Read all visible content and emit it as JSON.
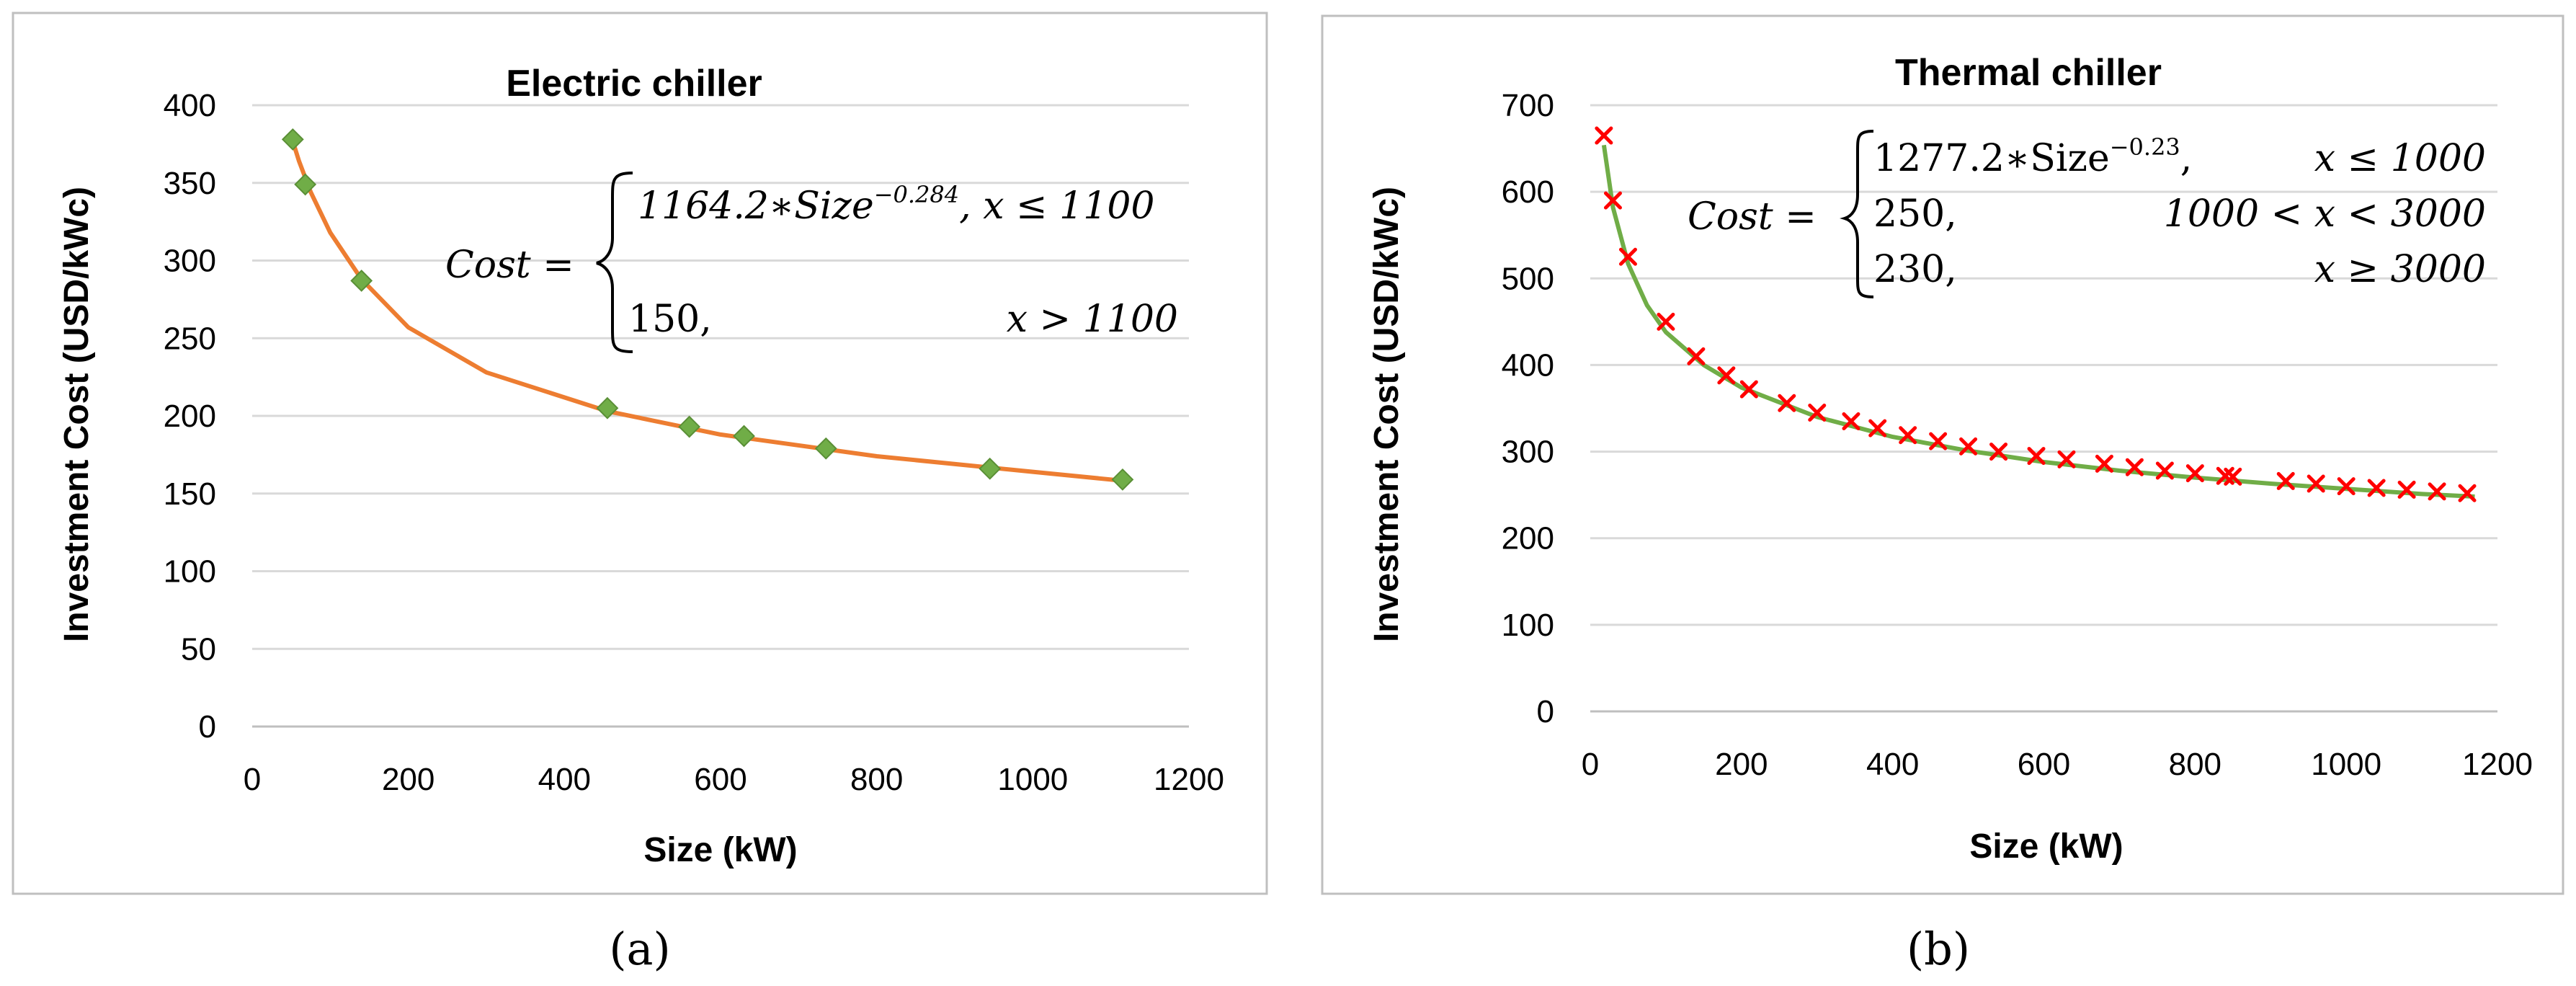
{
  "charts": [
    {
      "panel_label": "(a)",
      "chart_data": {
        "type": "scatter",
        "title": "Electric chiller",
        "xlabel": "Size (kW)",
        "ylabel": "Investment Cost (USD/kWc)",
        "xlim": [
          0,
          1200
        ],
        "ylim": [
          0,
          400
        ],
        "xticks": [
          "0",
          "200",
          "400",
          "600",
          "800",
          "1000",
          "1200"
        ],
        "yticks": [
          "0",
          "50",
          "100",
          "150",
          "200",
          "250",
          "300",
          "350",
          "400"
        ],
        "grid": true,
        "series": [
          {
            "name": "data",
            "marker": "diamond",
            "color": "#70ad47",
            "x": [
              52,
              68,
              140,
              455,
              560,
              630,
              735,
              945,
              1115
            ],
            "y": [
              378,
              349,
              287,
              205,
              193,
              187,
              179,
              166,
              159
            ]
          },
          {
            "name": "fit",
            "kind": "curve",
            "color": "#ed7d31",
            "x": [
              50,
              60,
              75,
              100,
              140,
              200,
              300,
              455,
              600,
              800,
              1000,
              1120
            ],
            "y": [
              380,
              364,
              344,
              318,
              288,
              257,
              228,
              203,
              188,
              174,
              164,
              158
            ]
          }
        ],
        "equation": {
          "lhs": "Cost =",
          "row1_coef": "1164.2∗Size",
          "row1_exp": "−0.284",
          "row1_cond": ", x ≤ 1100",
          "row2_val": "150,",
          "row2_cond": "x > 1100"
        }
      }
    },
    {
      "panel_label": "(b)",
      "chart_data": {
        "type": "scatter",
        "title": "Thermal chiller",
        "xlabel": "Size (kW)",
        "ylabel": "Investment Cost (USD/kWc)",
        "xlim": [
          0,
          1200
        ],
        "ylim": [
          0,
          700
        ],
        "xticks": [
          "0",
          "200",
          "400",
          "600",
          "800",
          "1000",
          "1200"
        ],
        "yticks": [
          "0",
          "100",
          "200",
          "300",
          "400",
          "500",
          "600",
          "700"
        ],
        "grid": true,
        "series": [
          {
            "name": "data",
            "marker": "x",
            "color": "#ff0000",
            "x": [
              18,
              30,
              50,
              100,
              140,
              180,
              210,
              260,
              300,
              345,
              380,
              420,
              460,
              500,
              540,
              590,
              630,
              680,
              720,
              760,
              800,
              840,
              850,
              920,
              960,
              1000,
              1040,
              1080,
              1120,
              1160
            ],
            "y": [
              665,
              590,
              525,
              450,
              410,
              388,
              372,
              356,
              345,
              335,
              327,
              319,
              312,
              306,
              300,
              295,
              291,
              286,
              282,
              278,
              275,
              272,
              271,
              266,
              263,
              260,
              258,
              256,
              254,
              252
            ]
          },
          {
            "name": "fit",
            "kind": "curve",
            "color": "#70ad47",
            "x": [
              18,
              30,
              50,
              75,
              100,
              150,
              200,
              300,
              400,
              500,
              600,
              700,
              800,
              900,
              1000,
              1100,
              1170
            ],
            "y": [
              654,
              582,
              517,
              469,
              438,
              400,
              374,
              340,
              317,
              301,
              288,
              278,
              270,
              263,
              257,
              251,
              248
            ]
          }
        ],
        "equation": {
          "lhs": "Cost =",
          "row1_coef": "1277.2∗Size",
          "row1_exp": "−0.23",
          "row1_comma": ",",
          "row1_cond": "x ≤ 1000",
          "row2_val": "250,",
          "row2_cond": "1000 <  x < 3000",
          "row3_val": "230,",
          "row3_cond": "x ≥ 3000"
        }
      }
    }
  ]
}
